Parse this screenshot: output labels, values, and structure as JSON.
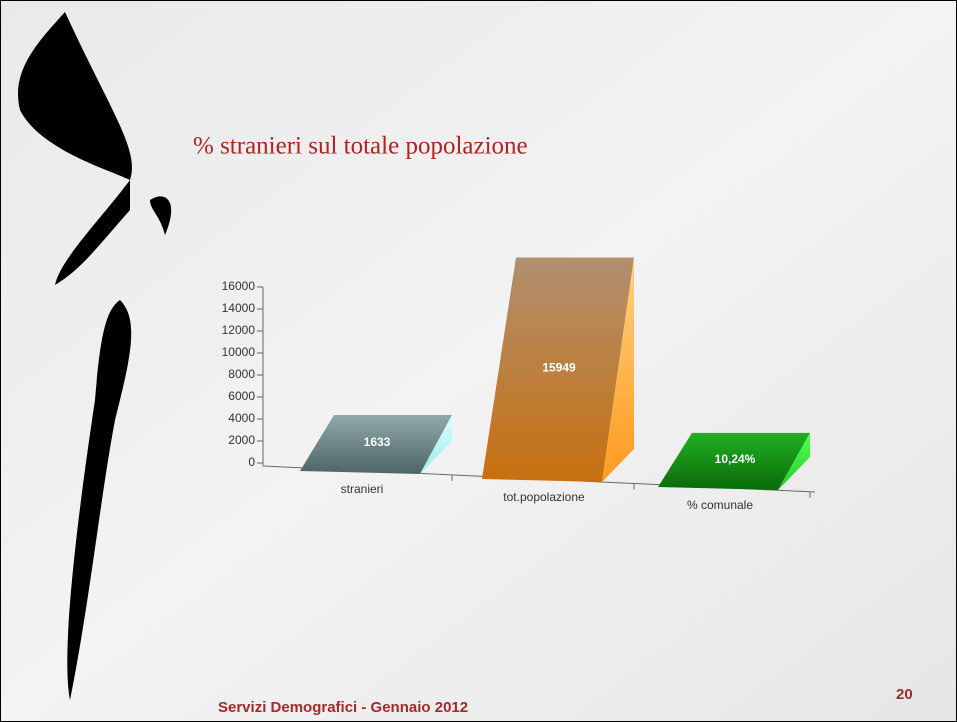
{
  "chart_data": {
    "type": "bar3d",
    "title": "% stranieri sul totale popolazione",
    "categories": [
      "stranieri",
      "tot.popolazione",
      "% comunale"
    ],
    "values": [
      1633,
      15949,
      10.24
    ],
    "value_labels": [
      "1633",
      "15949",
      "10,24%"
    ],
    "colors": [
      "#7f9a9c",
      "#c98b3c",
      "#1f9a1f"
    ],
    "ylim": [
      0,
      16000
    ],
    "yticks": [
      0,
      2000,
      4000,
      6000,
      8000,
      10000,
      12000,
      14000,
      16000
    ]
  },
  "footer": {
    "text": "Servizi Demografici - Gennaio 2012",
    "page": "20"
  }
}
